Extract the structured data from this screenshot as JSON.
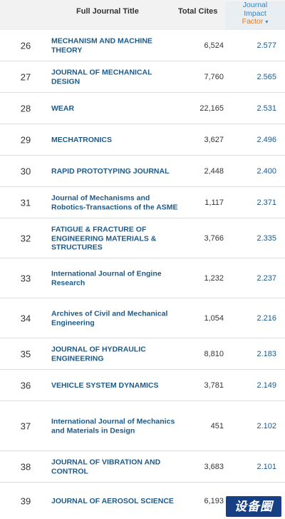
{
  "header": {
    "full_title": "Full Journal Title",
    "total_cites": "Total Cites",
    "jif_line1": "Journal",
    "jif_line2": "Impact",
    "jif_line3": "Factor",
    "sort_arrow": "▾"
  },
  "rows": [
    {
      "rank": "26",
      "title": "MECHANISM AND MACHINE THEORY",
      "cites": "6,524",
      "jif": "2.577"
    },
    {
      "rank": "27",
      "title": "JOURNAL OF MECHANICAL DESIGN",
      "cites": "7,760",
      "jif": "2.565"
    },
    {
      "rank": "28",
      "title": "WEAR",
      "cites": "22,165",
      "jif": "2.531"
    },
    {
      "rank": "29",
      "title": "MECHATRONICS",
      "cites": "3,627",
      "jif": "2.496"
    },
    {
      "rank": "30",
      "title": "RAPID PROTOTYPING JOURNAL",
      "cites": "2,448",
      "jif": "2.400"
    },
    {
      "rank": "31",
      "title": "Journal of Mechanisms and Robotics-Transactions of the ASME",
      "cites": "1,117",
      "jif": "2.371"
    },
    {
      "rank": "32",
      "title": "FATIGUE & FRACTURE OF ENGINEERING MATERIALS & STRUCTURES",
      "cites": "3,766",
      "jif": "2.335"
    },
    {
      "rank": "33",
      "title": "International Journal of Engine Research",
      "cites": "1,232",
      "jif": "2.237"
    },
    {
      "rank": "34",
      "title": "Archives of Civil and Mechanical Engineering",
      "cites": "1,054",
      "jif": "2.216"
    },
    {
      "rank": "35",
      "title": "JOURNAL OF HYDRAULIC ENGINEERING",
      "cites": "8,810",
      "jif": "2.183"
    },
    {
      "rank": "36",
      "title": "VEHICLE SYSTEM DYNAMICS",
      "cites": "3,781",
      "jif": "2.149"
    },
    {
      "rank": "37",
      "title": "International Journal of Mechanics and Materials in Design",
      "cites": "451",
      "jif": "2.102"
    },
    {
      "rank": "38",
      "title": "JOURNAL OF VIBRATION AND CONTROL",
      "cites": "3,683",
      "jif": "2.101"
    },
    {
      "rank": "39",
      "title": "JOURNAL OF AEROSOL SCIENCE",
      "cites": "6,193",
      "jif": ""
    }
  ],
  "watermark": "设备圈"
}
